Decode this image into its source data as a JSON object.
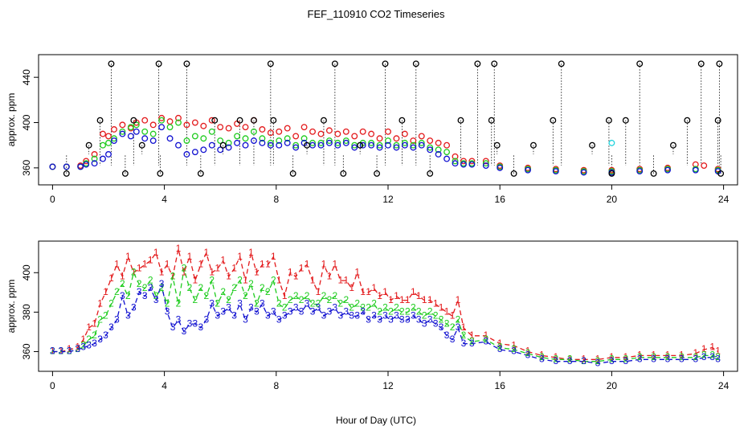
{
  "title": "FEF_110910  CO2 Timeseries",
  "xlabel": "Hour of Day (UTC)",
  "colors": {
    "series1": "#e31a1c",
    "series2": "#1fcc1f",
    "series3": "#1010d0",
    "extreme": "#000000",
    "cyan": "#22d3dd"
  },
  "chart_data": [
    {
      "type": "scatter",
      "panel": "top",
      "ylabel": "approx. ppm",
      "xlim": [
        -0.5,
        24.5
      ],
      "ylim": [
        345,
        460
      ],
      "xticks": [
        0,
        4,
        8,
        12,
        16,
        20,
        24
      ],
      "yticks": [
        360,
        400,
        440
      ],
      "series": [
        {
          "x": [
            0,
            0.5,
            1,
            1.2,
            1.5,
            1.8,
            2.0,
            2.2,
            2.5,
            2.8,
            3.0,
            3.3,
            3.6,
            3.9,
            4.2,
            4.5,
            4.8,
            5.1,
            5.4,
            5.7,
            6.0,
            6.3,
            6.6,
            6.9,
            7.2,
            7.5,
            7.8,
            8.1,
            8.4,
            8.7,
            9.0,
            9.3,
            9.6,
            9.9,
            10.2,
            10.5,
            10.8,
            11.1,
            11.4,
            11.7,
            12.0,
            12.3,
            12.6,
            12.9,
            13.2,
            13.5,
            13.8,
            14.1,
            14.4,
            14.7,
            15.0,
            15.5,
            16.0,
            17.0,
            18.0,
            19.0,
            20.0,
            21.0,
            22.0,
            23.0,
            23.3,
            23.8
          ],
          "y": [
            361,
            361,
            362,
            366,
            372,
            390,
            388,
            394,
            398,
            395,
            400,
            402,
            398,
            404,
            401,
            404,
            398,
            400,
            397,
            402,
            396,
            395,
            399,
            396,
            402,
            394,
            391,
            392,
            395,
            388,
            396,
            392,
            390,
            393,
            390,
            392,
            388,
            392,
            390,
            386,
            392,
            386,
            390,
            384,
            388,
            384,
            382,
            380,
            370,
            366,
            366,
            366,
            362,
            360,
            359,
            358,
            358,
            359,
            360,
            363,
            362,
            359
          ]
        },
        {
          "x": [
            0,
            0.5,
            1,
            1.2,
            1.5,
            1.8,
            2.0,
            2.2,
            2.5,
            2.8,
            3.0,
            3.3,
            3.6,
            3.9,
            4.2,
            4.5,
            4.8,
            5.1,
            5.4,
            5.7,
            6.0,
            6.3,
            6.6,
            6.9,
            7.2,
            7.5,
            7.8,
            8.1,
            8.4,
            8.7,
            9.0,
            9.3,
            9.6,
            9.9,
            10.2,
            10.5,
            10.8,
            11.1,
            11.4,
            11.7,
            12.0,
            12.3,
            12.6,
            12.9,
            13.2,
            13.5,
            13.8,
            14.1,
            14.4,
            14.7,
            15.0,
            15.5,
            16.0,
            17.0,
            18.0,
            19.0,
            20.0,
            21.0,
            22.0,
            23.0,
            23.8
          ],
          "y": [
            361,
            361,
            361,
            364,
            368,
            380,
            382,
            386,
            392,
            396,
            398,
            392,
            390,
            402,
            396,
            400,
            384,
            388,
            386,
            392,
            384,
            382,
            388,
            386,
            392,
            386,
            382,
            384,
            386,
            380,
            386,
            382,
            382,
            384,
            382,
            384,
            380,
            382,
            382,
            380,
            384,
            380,
            382,
            380,
            382,
            378,
            376,
            374,
            366,
            364,
            364,
            364,
            361,
            359,
            358,
            357,
            357,
            358,
            359,
            359,
            358
          ]
        },
        {
          "x": [
            0,
            0.5,
            1,
            1.2,
            1.5,
            1.8,
            2.0,
            2.2,
            2.5,
            2.8,
            3.0,
            3.3,
            3.6,
            3.9,
            4.2,
            4.5,
            4.8,
            5.1,
            5.4,
            5.7,
            6.0,
            6.3,
            6.6,
            6.9,
            7.2,
            7.5,
            7.8,
            8.1,
            8.4,
            8.7,
            9.0,
            9.3,
            9.6,
            9.9,
            10.2,
            10.5,
            10.8,
            11.1,
            11.4,
            11.7,
            12.0,
            12.3,
            12.6,
            12.9,
            13.2,
            13.5,
            13.8,
            14.1,
            14.4,
            14.7,
            15.0,
            15.5,
            16.0,
            17.0,
            18.0,
            19.0,
            20.0,
            21.0,
            22.0,
            23.0,
            23.8
          ],
          "y": [
            361,
            361,
            361,
            363,
            364,
            368,
            372,
            384,
            390,
            388,
            392,
            386,
            384,
            396,
            386,
            380,
            372,
            374,
            376,
            380,
            376,
            378,
            382,
            380,
            384,
            382,
            380,
            380,
            382,
            378,
            382,
            380,
            380,
            382,
            380,
            382,
            378,
            380,
            380,
            378,
            380,
            378,
            380,
            378,
            380,
            376,
            372,
            368,
            364,
            363,
            363,
            362,
            360,
            358,
            357,
            356,
            356,
            357,
            358,
            358,
            357
          ]
        },
        {
          "x": [
            0.5,
            1.3,
            1.7,
            2.1,
            2.6,
            2.9,
            3.2,
            3.8,
            3.85,
            4.8,
            5.3,
            5.8,
            6.1,
            6.7,
            7.2,
            7.8,
            7.9,
            8.6,
            9.1,
            9.7,
            10.1,
            10.4,
            11.0,
            11.6,
            11.9,
            12.5,
            13.0,
            13.5,
            14.6,
            15.2,
            15.7,
            15.8,
            15.9,
            16.5,
            17.2,
            17.9,
            18.2,
            19.3,
            19.9,
            20.0,
            20.5,
            21.0,
            21.5,
            22.2,
            22.7,
            23.2,
            23.8,
            23.85,
            23.9
          ],
          "y": [
            355,
            380,
            402,
            452,
            355,
            402,
            380,
            452,
            355,
            452,
            355,
            402,
            380,
            402,
            402,
            452,
            402,
            355,
            380,
            402,
            452,
            355,
            380,
            355,
            452,
            402,
            452,
            355,
            402,
            452,
            402,
            452,
            380,
            355,
            380,
            402,
            452,
            380,
            402,
            355,
            402,
            452,
            355,
            380,
            402,
            452,
            402,
            452,
            355
          ]
        }
      ],
      "annotations": [
        {
          "x": 20.0,
          "y": 382
        }
      ]
    },
    {
      "type": "line",
      "panel": "bottom",
      "ylabel": "approx. ppm",
      "xlim": [
        -0.5,
        24.5
      ],
      "ylim": [
        350,
        416
      ],
      "xticks": [
        0,
        4,
        8,
        12,
        16,
        20,
        24
      ],
      "yticks": [
        360,
        380,
        400
      ],
      "series": [
        {
          "label": "1",
          "x": [
            0,
            0.3,
            0.6,
            0.9,
            1.1,
            1.3,
            1.5,
            1.7,
            1.9,
            2.1,
            2.3,
            2.5,
            2.7,
            2.9,
            3.1,
            3.3,
            3.5,
            3.7,
            3.9,
            4.1,
            4.3,
            4.5,
            4.7,
            4.9,
            5.1,
            5.3,
            5.5,
            5.7,
            5.9,
            6.1,
            6.3,
            6.5,
            6.7,
            6.9,
            7.1,
            7.3,
            7.5,
            7.7,
            7.9,
            8.1,
            8.3,
            8.5,
            8.7,
            8.9,
            9.1,
            9.3,
            9.5,
            9.7,
            9.9,
            10.1,
            10.3,
            10.5,
            10.7,
            10.9,
            11.1,
            11.3,
            11.5,
            11.7,
            11.9,
            12.1,
            12.3,
            12.5,
            12.7,
            12.9,
            13.1,
            13.3,
            13.5,
            13.7,
            13.9,
            14.1,
            14.3,
            14.5,
            14.7,
            15.0,
            15.5,
            16.0,
            16.5,
            17.0,
            17.5,
            18.0,
            18.5,
            19.0,
            19.5,
            20.0,
            20.5,
            21.0,
            21.5,
            22.0,
            22.5,
            23.0,
            23.3,
            23.6,
            23.8
          ],
          "y": [
            360,
            360,
            361,
            362,
            366,
            372,
            374,
            384,
            390,
            397,
            404,
            398,
            408,
            400,
            402,
            404,
            406,
            410,
            400,
            404,
            398,
            412,
            400,
            408,
            396,
            404,
            410,
            400,
            402,
            406,
            398,
            402,
            408,
            396,
            410,
            400,
            404,
            404,
            408,
            396,
            388,
            400,
            398,
            402,
            404,
            396,
            390,
            404,
            398,
            404,
            396,
            396,
            392,
            400,
            390,
            390,
            392,
            388,
            390,
            386,
            388,
            386,
            386,
            390,
            388,
            386,
            386,
            384,
            382,
            380,
            378,
            386,
            372,
            368,
            368,
            364,
            363,
            360,
            358,
            357,
            356,
            356,
            356,
            357,
            357,
            358,
            358,
            358,
            358,
            359,
            361,
            362,
            360
          ]
        },
        {
          "label": "2",
          "x": [
            0,
            0.3,
            0.6,
            0.9,
            1.1,
            1.3,
            1.5,
            1.7,
            1.9,
            2.1,
            2.3,
            2.5,
            2.7,
            2.9,
            3.1,
            3.3,
            3.5,
            3.7,
            3.9,
            4.1,
            4.3,
            4.5,
            4.7,
            4.9,
            5.1,
            5.3,
            5.5,
            5.7,
            5.9,
            6.1,
            6.3,
            6.5,
            6.7,
            6.9,
            7.1,
            7.3,
            7.5,
            7.7,
            7.9,
            8.1,
            8.3,
            8.5,
            8.7,
            8.9,
            9.1,
            9.3,
            9.5,
            9.7,
            9.9,
            10.1,
            10.3,
            10.5,
            10.7,
            10.9,
            11.1,
            11.3,
            11.5,
            11.7,
            11.9,
            12.1,
            12.3,
            12.5,
            12.7,
            12.9,
            13.1,
            13.3,
            13.5,
            13.7,
            13.9,
            14.1,
            14.3,
            14.5,
            14.7,
            15.0,
            15.5,
            16.0,
            16.5,
            17.0,
            17.5,
            18.0,
            18.5,
            19.0,
            19.5,
            20.0,
            20.5,
            21.0,
            21.5,
            22.0,
            22.5,
            23.0,
            23.3,
            23.6,
            23.8
          ],
          "y": [
            360,
            360,
            360,
            361,
            363,
            366,
            368,
            376,
            378,
            384,
            390,
            394,
            388,
            400,
            394,
            392,
            396,
            388,
            392,
            384,
            398,
            384,
            402,
            392,
            386,
            392,
            388,
            396,
            384,
            390,
            386,
            392,
            396,
            388,
            394,
            384,
            392,
            390,
            396,
            384,
            382,
            386,
            388,
            386,
            388,
            384,
            384,
            388,
            386,
            388,
            384,
            386,
            382,
            384,
            382,
            382,
            384,
            380,
            382,
            380,
            382,
            380,
            380,
            382,
            380,
            378,
            380,
            378,
            376,
            374,
            372,
            376,
            368,
            365,
            366,
            362,
            361,
            359,
            357,
            356,
            356,
            355,
            355,
            356,
            356,
            357,
            357,
            357,
            357,
            357,
            358,
            358,
            357
          ]
        },
        {
          "label": "3",
          "x": [
            0,
            0.3,
            0.6,
            0.9,
            1.1,
            1.3,
            1.5,
            1.7,
            1.9,
            2.1,
            2.3,
            2.5,
            2.7,
            2.9,
            3.1,
            3.3,
            3.5,
            3.7,
            3.9,
            4.1,
            4.3,
            4.5,
            4.7,
            4.9,
            5.1,
            5.3,
            5.5,
            5.7,
            5.9,
            6.1,
            6.3,
            6.5,
            6.7,
            6.9,
            7.1,
            7.3,
            7.5,
            7.7,
            7.9,
            8.1,
            8.3,
            8.5,
            8.7,
            8.9,
            9.1,
            9.3,
            9.5,
            9.7,
            9.9,
            10.1,
            10.3,
            10.5,
            10.7,
            10.9,
            11.1,
            11.3,
            11.5,
            11.7,
            11.9,
            12.1,
            12.3,
            12.5,
            12.7,
            12.9,
            13.1,
            13.3,
            13.5,
            13.7,
            13.9,
            14.1,
            14.3,
            14.5,
            14.7,
            15.0,
            15.5,
            16.0,
            16.5,
            17.0,
            17.5,
            18.0,
            18.5,
            19.0,
            19.5,
            20.0,
            20.5,
            21.0,
            21.5,
            22.0,
            22.5,
            23.0,
            23.3,
            23.6,
            23.8
          ],
          "y": [
            360,
            360,
            360,
            361,
            362,
            363,
            364,
            366,
            368,
            372,
            376,
            388,
            378,
            382,
            390,
            388,
            392,
            386,
            394,
            380,
            372,
            376,
            370,
            374,
            374,
            372,
            376,
            384,
            378,
            380,
            382,
            378,
            384,
            376,
            382,
            380,
            384,
            378,
            380,
            376,
            378,
            380,
            382,
            380,
            384,
            380,
            382,
            378,
            380,
            382,
            378,
            380,
            378,
            378,
            380,
            376,
            378,
            376,
            378,
            376,
            378,
            376,
            376,
            378,
            376,
            374,
            376,
            374,
            372,
            368,
            366,
            372,
            364,
            364,
            365,
            361,
            360,
            358,
            356,
            355,
            355,
            355,
            354,
            355,
            355,
            356,
            356,
            356,
            356,
            356,
            357,
            357,
            356
          ]
        }
      ]
    }
  ]
}
